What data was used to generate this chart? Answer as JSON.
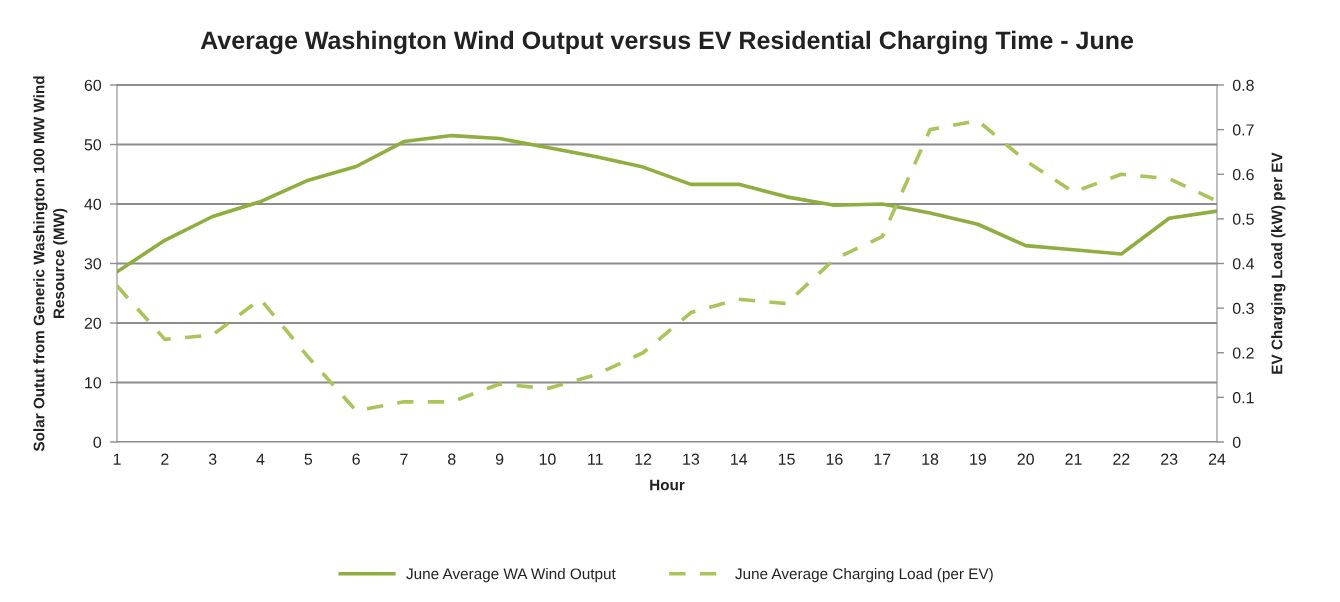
{
  "chart_data": {
    "type": "line",
    "title": "Average Washington Wind Output versus EV Residential Charging Time - June",
    "xlabel": "Hour",
    "ylabel": "Solar Outut from Generic Washington 100 MW Wind\nResource (MW)",
    "y2label": "EV Charging Load (kW) per EV",
    "categories": [
      "1",
      "2",
      "3",
      "4",
      "5",
      "6",
      "7",
      "8",
      "9",
      "10",
      "11",
      "12",
      "13",
      "14",
      "15",
      "16",
      "17",
      "18",
      "19",
      "20",
      "21",
      "22",
      "23",
      "24"
    ],
    "series": [
      {
        "name": "June Average WA Wind Output",
        "color": "#8fae3f",
        "line_style": "solid",
        "axis": "y",
        "values": [
          28.6,
          33.9,
          37.9,
          40.4,
          44.0,
          46.3,
          50.5,
          51.5,
          51.0,
          49.5,
          48.0,
          46.2,
          43.3,
          43.3,
          41.2,
          39.8,
          40.0,
          38.5,
          36.6,
          33.0,
          32.3,
          31.6,
          37.6,
          38.8
        ]
      },
      {
        "name": "June Average Charging Load (per EV)",
        "color": "#a9c45a",
        "line_style": "dashed",
        "axis": "y2",
        "values": [
          0.35,
          0.23,
          0.24,
          0.32,
          0.19,
          0.07,
          0.09,
          0.09,
          0.13,
          0.12,
          0.15,
          0.2,
          0.29,
          0.32,
          0.31,
          0.41,
          0.46,
          0.7,
          0.72,
          0.63,
          0.56,
          0.6,
          0.59,
          0.54
        ]
      }
    ],
    "ylim": [
      0,
      60
    ],
    "yticks": [
      0,
      10,
      20,
      30,
      40,
      50,
      60
    ],
    "y2lim": [
      0,
      0.8
    ],
    "y2ticks": [
      0,
      0.1,
      0.2,
      0.3,
      0.4,
      0.5,
      0.6,
      0.7,
      0.8
    ],
    "grid": "y",
    "legend": "bottom"
  }
}
